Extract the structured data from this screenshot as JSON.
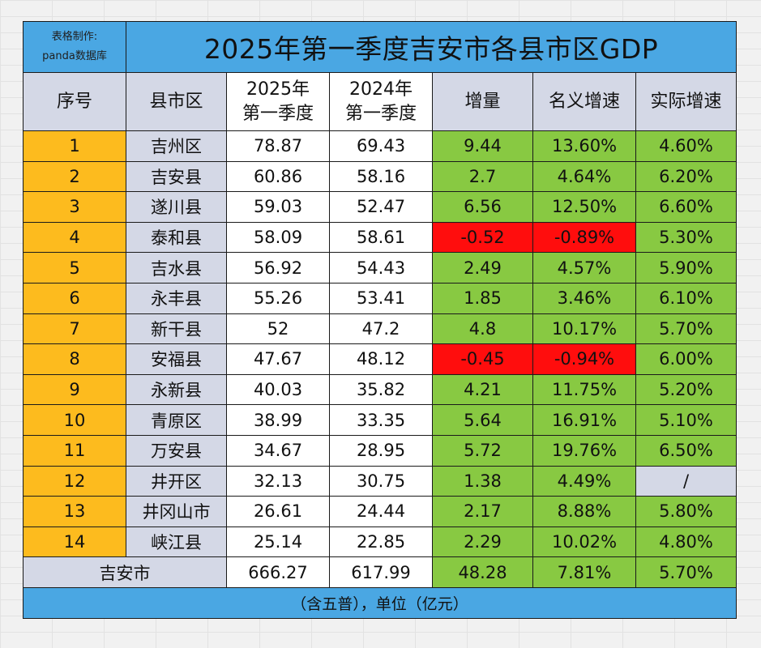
{
  "credit": {
    "line1": "表格制作:",
    "line2": "panda数据库"
  },
  "title": "2025年第一季度吉安市各县市区GDP",
  "headers": {
    "index": "序号",
    "district": "县市区",
    "q2025_line1": "2025年",
    "q2025_line2": "第一季度",
    "q2024_line1": "2024年",
    "q2024_line2": "第一季度",
    "increase": "增量",
    "nominal_growth": "名义增速",
    "real_growth": "实际增速"
  },
  "rows": [
    {
      "index": "1",
      "district": "吉州区",
      "q2025": "78.87",
      "q2024": "69.43",
      "increase": "9.44",
      "nominal": "13.60%",
      "real": "4.60%",
      "negative": false
    },
    {
      "index": "2",
      "district": "吉安县",
      "q2025": "60.86",
      "q2024": "58.16",
      "increase": "2.7",
      "nominal": "4.64%",
      "real": "6.20%",
      "negative": false
    },
    {
      "index": "3",
      "district": "遂川县",
      "q2025": "59.03",
      "q2024": "52.47",
      "increase": "6.56",
      "nominal": "12.50%",
      "real": "6.60%",
      "negative": false
    },
    {
      "index": "4",
      "district": "泰和县",
      "q2025": "58.09",
      "q2024": "58.61",
      "increase": "-0.52",
      "nominal": "-0.89%",
      "real": "5.30%",
      "negative": true
    },
    {
      "index": "5",
      "district": "吉水县",
      "q2025": "56.92",
      "q2024": "54.43",
      "increase": "2.49",
      "nominal": "4.57%",
      "real": "5.90%",
      "negative": false
    },
    {
      "index": "6",
      "district": "永丰县",
      "q2025": "55.26",
      "q2024": "53.41",
      "increase": "1.85",
      "nominal": "3.46%",
      "real": "6.10%",
      "negative": false
    },
    {
      "index": "7",
      "district": "新干县",
      "q2025": "52",
      "q2024": "47.2",
      "increase": "4.8",
      "nominal": "10.17%",
      "real": "5.70%",
      "negative": false
    },
    {
      "index": "8",
      "district": "安福县",
      "q2025": "47.67",
      "q2024": "48.12",
      "increase": "-0.45",
      "nominal": "-0.94%",
      "real": "6.00%",
      "negative": true
    },
    {
      "index": "9",
      "district": "永新县",
      "q2025": "40.03",
      "q2024": "35.82",
      "increase": "4.21",
      "nominal": "11.75%",
      "real": "5.20%",
      "negative": false
    },
    {
      "index": "10",
      "district": "青原区",
      "q2025": "38.99",
      "q2024": "33.35",
      "increase": "5.64",
      "nominal": "16.91%",
      "real": "5.10%",
      "negative": false
    },
    {
      "index": "11",
      "district": "万安县",
      "q2025": "34.67",
      "q2024": "28.95",
      "increase": "5.72",
      "nominal": "19.76%",
      "real": "6.50%",
      "negative": false
    },
    {
      "index": "12",
      "district": "井开区",
      "q2025": "32.13",
      "q2024": "30.75",
      "increase": "1.38",
      "nominal": "4.49%",
      "real": "/",
      "negative": false
    },
    {
      "index": "13",
      "district": "井冈山市",
      "q2025": "26.61",
      "q2024": "24.44",
      "increase": "2.17",
      "nominal": "8.88%",
      "real": "5.80%",
      "negative": false
    },
    {
      "index": "14",
      "district": "峡江县",
      "q2025": "25.14",
      "q2024": "22.85",
      "increase": "2.29",
      "nominal": "10.02%",
      "real": "4.80%",
      "negative": false
    }
  ],
  "total": {
    "label": "吉安市",
    "q2025": "666.27",
    "q2024": "617.99",
    "increase": "48.28",
    "nominal": "7.81%",
    "real": "5.70%"
  },
  "footer": "（含五普），单位（亿元）",
  "colors": {
    "title_bg": "#4aa7e3",
    "header_bg": "#d4d8e6",
    "index_bg": "#fdbb1e",
    "positive_bg": "#88c942",
    "negative_bg": "#ff0d0d"
  }
}
